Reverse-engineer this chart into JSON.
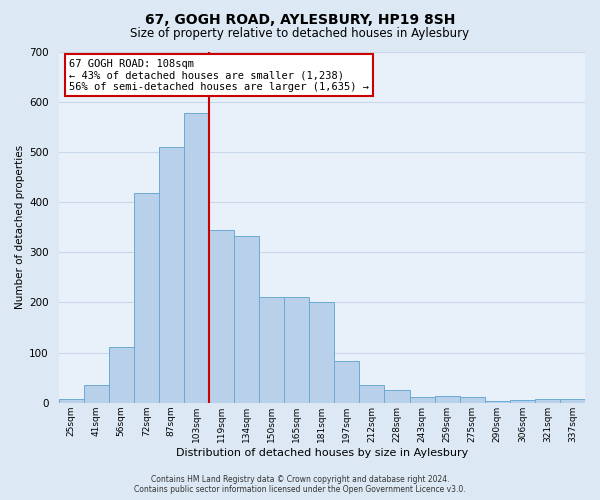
{
  "title": "67, GOGH ROAD, AYLESBURY, HP19 8SH",
  "subtitle": "Size of property relative to detached houses in Aylesbury",
  "xlabel": "Distribution of detached houses by size in Aylesbury",
  "ylabel": "Number of detached properties",
  "categories": [
    "25sqm",
    "41sqm",
    "56sqm",
    "72sqm",
    "87sqm",
    "103sqm",
    "119sqm",
    "134sqm",
    "150sqm",
    "165sqm",
    "181sqm",
    "197sqm",
    "212sqm",
    "228sqm",
    "243sqm",
    "259sqm",
    "275sqm",
    "290sqm",
    "306sqm",
    "321sqm",
    "337sqm"
  ],
  "bar_heights": [
    8,
    35,
    112,
    418,
    510,
    578,
    345,
    332,
    211,
    210,
    201,
    83,
    35,
    25,
    12,
    13,
    12,
    3,
    5,
    8,
    8
  ],
  "bar_color": "#b8d0ea",
  "bar_edge_color": "#6aaad4",
  "vline_color": "#cc0000",
  "ylim": [
    0,
    700
  ],
  "yticks": [
    0,
    100,
    200,
    300,
    400,
    500,
    600,
    700
  ],
  "annotation_title": "67 GOGH ROAD: 108sqm",
  "annotation_line1": "← 43% of detached houses are smaller (1,238)",
  "annotation_line2": "56% of semi-detached houses are larger (1,635) →",
  "annotation_box_color": "#ffffff",
  "annotation_box_edge": "#cc0000",
  "footer1": "Contains HM Land Registry data © Crown copyright and database right 2024.",
  "footer2": "Contains public sector information licensed under the Open Government Licence v3.0.",
  "bg_color": "#dce9f5",
  "plot_bg_color": "#e8f1fa",
  "grid_color": "#c8d8e8",
  "title_fontsize": 10,
  "subtitle_fontsize": 8.5
}
